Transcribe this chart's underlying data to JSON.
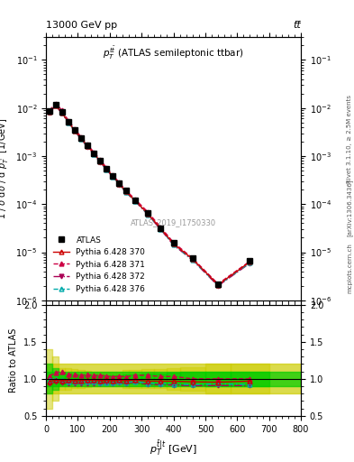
{
  "title_top": "13000 GeV pp",
  "title_right": "tt̅",
  "plot_title": "$p_T^{t\\bar{t}}$ (ATLAS semileptonic ttbar)",
  "xlabel": "$p_T^{t\\bar{t}|t}$ [GeV]",
  "ylabel_main": "1 / σ dσ / d $p_T^{t\\bar{t}|t}$ [1/GeV]",
  "ylabel_ratio": "Ratio to ATLAS",
  "watermark": "ATLAS_2019_I1750330",
  "right_label": "Rivet 3.1.10, ≥ 2.5M events",
  "arxiv_label": "[arXiv:1306.3436]",
  "mcplots_label": "mcplots.cern.ch",
  "xbins": [
    0,
    20,
    40,
    60,
    80,
    100,
    120,
    140,
    160,
    180,
    200,
    220,
    240,
    260,
    300,
    340,
    380,
    420,
    500,
    580,
    700
  ],
  "atlas_y": [
    0.0085,
    0.0115,
    0.0082,
    0.0052,
    0.0035,
    0.0024,
    0.00165,
    0.00115,
    0.0008,
    0.00055,
    0.00039,
    0.00027,
    0.00019,
    0.00012,
    6.5e-05,
    3.2e-05,
    1.55e-05,
    7.5e-06,
    2.2e-06,
    6.5e-06
  ],
  "py370_y": [
    0.0082,
    0.0113,
    0.008,
    0.0051,
    0.0034,
    0.00235,
    0.00162,
    0.00113,
    0.00078,
    0.00054,
    0.00038,
    0.000265,
    0.000185,
    0.000118,
    6.3e-05,
    3.1e-05,
    1.5e-05,
    7.2e-06,
    2.1e-06,
    6.3e-06
  ],
  "py371_y": [
    0.0088,
    0.0125,
    0.009,
    0.0055,
    0.0037,
    0.0025,
    0.00175,
    0.0012,
    0.00084,
    0.00057,
    0.0004,
    0.00028,
    0.000195,
    0.000126,
    6.8e-05,
    3.3e-05,
    1.6e-05,
    7.5e-06,
    2.2e-06,
    6.5e-06
  ],
  "py372_y": [
    0.008,
    0.011,
    0.0078,
    0.0049,
    0.0033,
    0.00225,
    0.00155,
    0.00108,
    0.00075,
    0.00052,
    0.000365,
    0.000255,
    0.000178,
    0.000115,
    6e-05,
    2.95e-05,
    1.42e-05,
    6.8e-06,
    2e-06,
    5.9e-06
  ],
  "py376_y": [
    0.0084,
    0.0115,
    0.0081,
    0.005,
    0.00335,
    0.0023,
    0.00158,
    0.0011,
    0.00076,
    0.000525,
    0.00037,
    0.000258,
    0.00018,
    0.000116,
    6.1e-05,
    3e-05,
    1.44e-05,
    6.9e-06,
    2.05e-06,
    6e-06
  ],
  "atlas_color": "#000000",
  "py370_color": "#cc0000",
  "py371_color": "#cc0044",
  "py372_color": "#aa0055",
  "py376_color": "#00aaaa",
  "band_green": "#00cc00",
  "band_yellow": "#cccc00",
  "xlim": [
    0,
    800
  ],
  "ylim_main": [
    1e-06,
    0.3
  ],
  "ylim_ratio": [
    0.5,
    2.0
  ]
}
